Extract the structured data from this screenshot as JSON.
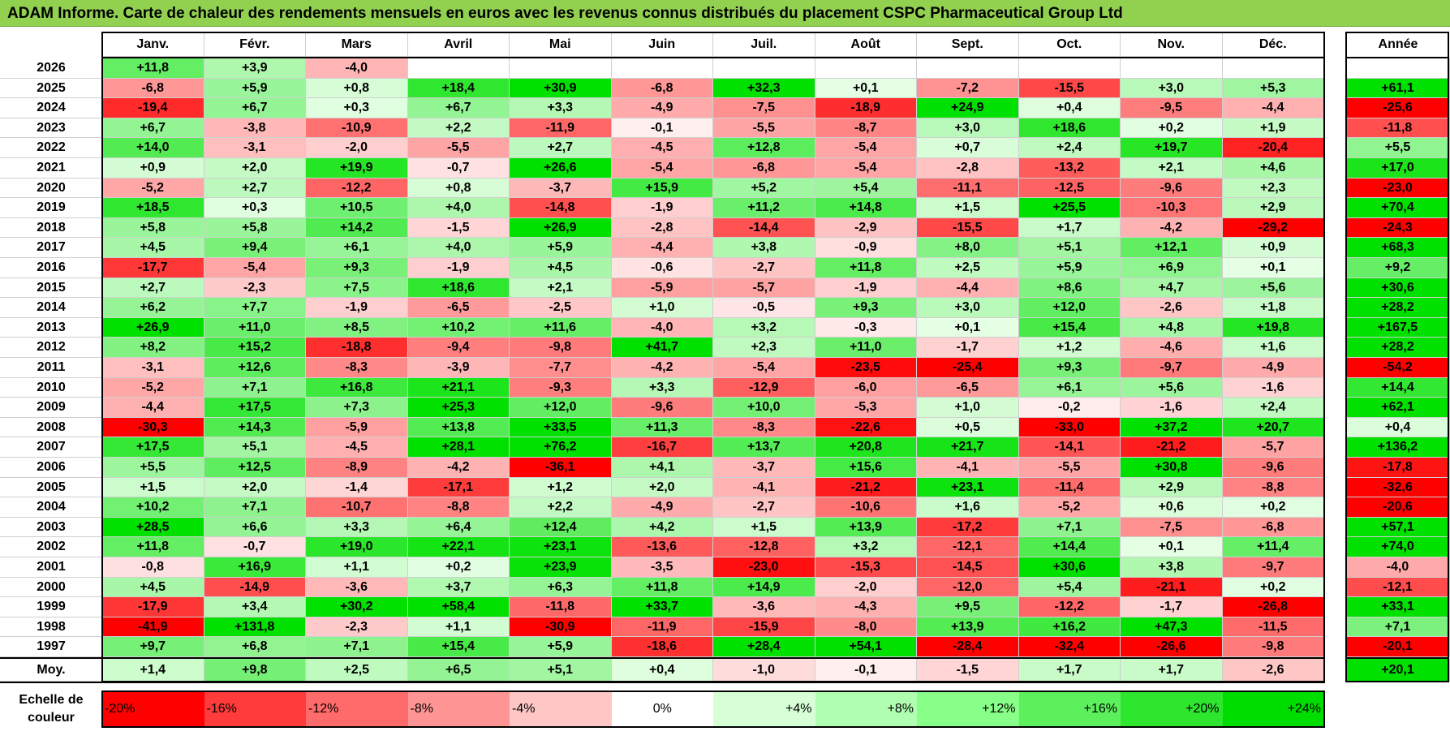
{
  "title": "ADAM Informe. Carte de chaleur des rendements mensuels en euros avec les revenus connus distribués du placement CSPC Pharmaceutical Group Ltd",
  "chart_data": {
    "type": "heatmap",
    "title": "ADAM Informe. Carte de chaleur des rendements mensuels en euros avec les revenus connus distribués du placement CSPC Pharmaceutical Group Ltd",
    "months": [
      "Janv.",
      "Févr.",
      "Mars",
      "Avril",
      "Mai",
      "Juin",
      "Juil.",
      "Août",
      "Sept.",
      "Oct.",
      "Nov.",
      "Déc."
    ],
    "year_header": "Année",
    "rows": [
      {
        "year": "2026",
        "values": [
          "+11,8",
          "+3,9",
          "-4,0",
          "",
          "",
          "",
          "",
          "",
          "",
          "",
          "",
          ""
        ],
        "annual": ""
      },
      {
        "year": "2025",
        "values": [
          "-6,8",
          "+5,9",
          "+0,8",
          "+18,4",
          "+30,9",
          "-6,8",
          "+32,3",
          "+0,1",
          "-7,2",
          "-15,5",
          "+3,0",
          "+5,3"
        ],
        "annual": "+61,1"
      },
      {
        "year": "2024",
        "values": [
          "-19,4",
          "+6,7",
          "+0,3",
          "+6,7",
          "+3,3",
          "-4,9",
          "-7,5",
          "-18,9",
          "+24,9",
          "+0,4",
          "-9,5",
          "-4,4"
        ],
        "annual": "-25,6"
      },
      {
        "year": "2023",
        "values": [
          "+6,7",
          "-3,8",
          "-10,9",
          "+2,2",
          "-11,9",
          "-0,1",
          "-5,5",
          "-8,7",
          "+3,0",
          "+18,6",
          "+0,2",
          "+1,9"
        ],
        "annual": "-11,8"
      },
      {
        "year": "2022",
        "values": [
          "+14,0",
          "-3,1",
          "-2,0",
          "-5,5",
          "+2,7",
          "-4,5",
          "+12,8",
          "-5,4",
          "+0,7",
          "+2,4",
          "+19,7",
          "-20,4"
        ],
        "annual": "+5,5"
      },
      {
        "year": "2021",
        "values": [
          "+0,9",
          "+2,0",
          "+19,9",
          "-0,7",
          "+26,6",
          "-5,4",
          "-6,8",
          "-5,4",
          "-2,8",
          "-13,2",
          "+2,1",
          "+4,6"
        ],
        "annual": "+17,0"
      },
      {
        "year": "2020",
        "values": [
          "-5,2",
          "+2,7",
          "-12,2",
          "+0,8",
          "-3,7",
          "+15,9",
          "+5,2",
          "+5,4",
          "-11,1",
          "-12,5",
          "-9,6",
          "+2,3"
        ],
        "annual": "-23,0"
      },
      {
        "year": "2019",
        "values": [
          "+18,5",
          "+0,3",
          "+10,5",
          "+4,0",
          "-14,8",
          "-1,9",
          "+11,2",
          "+14,8",
          "+1,5",
          "+25,5",
          "-10,3",
          "+2,9"
        ],
        "annual": "+70,4"
      },
      {
        "year": "2018",
        "values": [
          "+5,8",
          "+5,8",
          "+14,2",
          "-1,5",
          "+26,9",
          "-2,8",
          "-14,4",
          "-2,9",
          "-15,5",
          "+1,7",
          "-4,2",
          "-29,2"
        ],
        "annual": "-24,3"
      },
      {
        "year": "2017",
        "values": [
          "+4,5",
          "+9,4",
          "+6,1",
          "+4,0",
          "+5,9",
          "-4,4",
          "+3,8",
          "-0,9",
          "+8,0",
          "+5,1",
          "+12,1",
          "+0,9"
        ],
        "annual": "+68,3"
      },
      {
        "year": "2016",
        "values": [
          "-17,7",
          "-5,4",
          "+9,3",
          "-1,9",
          "+4,5",
          "-0,6",
          "-2,7",
          "+11,8",
          "+2,5",
          "+5,9",
          "+6,9",
          "+0,1"
        ],
        "annual": "+9,2"
      },
      {
        "year": "2015",
        "values": [
          "+2,7",
          "-2,3",
          "+7,5",
          "+18,6",
          "+2,1",
          "-5,9",
          "-5,7",
          "-1,9",
          "-4,4",
          "+8,6",
          "+4,7",
          "+5,6"
        ],
        "annual": "+30,6"
      },
      {
        "year": "2014",
        "values": [
          "+6,2",
          "+7,7",
          "-1,9",
          "-6,5",
          "-2,5",
          "+1,0",
          "-0,5",
          "+9,3",
          "+3,0",
          "+12,0",
          "-2,6",
          "+1,8"
        ],
        "annual": "+28,2"
      },
      {
        "year": "2013",
        "values": [
          "+26,9",
          "+11,0",
          "+8,5",
          "+10,2",
          "+11,6",
          "-4,0",
          "+3,2",
          "-0,3",
          "+0,1",
          "+15,4",
          "+4,8",
          "+19,8"
        ],
        "annual": "+167,5"
      },
      {
        "year": "2012",
        "values": [
          "+8,2",
          "+15,2",
          "-18,8",
          "-9,4",
          "-9,8",
          "+41,7",
          "+2,3",
          "+11,0",
          "-1,7",
          "+1,2",
          "-4,6",
          "+1,6"
        ],
        "annual": "+28,2"
      },
      {
        "year": "2011",
        "values": [
          "-3,1",
          "+12,6",
          "-8,3",
          "-3,9",
          "-7,7",
          "-4,2",
          "-5,4",
          "-23,5",
          "-25,4",
          "+9,3",
          "-9,7",
          "-4,9"
        ],
        "annual": "-54,2"
      },
      {
        "year": "2010",
        "values": [
          "-5,2",
          "+7,1",
          "+16,8",
          "+21,1",
          "-9,3",
          "+3,3",
          "-12,9",
          "-6,0",
          "-6,5",
          "+6,1",
          "+5,6",
          "-1,6"
        ],
        "annual": "+14,4"
      },
      {
        "year": "2009",
        "values": [
          "-4,4",
          "+17,5",
          "+7,3",
          "+25,3",
          "+12,0",
          "-9,6",
          "+10,0",
          "-5,3",
          "+1,0",
          "-0,2",
          "-1,6",
          "+2,4"
        ],
        "annual": "+62,1"
      },
      {
        "year": "2008",
        "values": [
          "-30,3",
          "+14,3",
          "-5,9",
          "+13,8",
          "+33,5",
          "+11,3",
          "-8,3",
          "-22,6",
          "+0,5",
          "-33,0",
          "+37,2",
          "+20,7"
        ],
        "annual": "+0,4"
      },
      {
        "year": "2007",
        "values": [
          "+17,5",
          "+5,1",
          "-4,5",
          "+28,1",
          "+76,2",
          "-16,7",
          "+13,7",
          "+20,8",
          "+21,7",
          "-14,1",
          "-21,2",
          "-5,7"
        ],
        "annual": "+136,2"
      },
      {
        "year": "2006",
        "values": [
          "+5,5",
          "+12,5",
          "-8,9",
          "-4,2",
          "-36,1",
          "+4,1",
          "-3,7",
          "+15,6",
          "-4,1",
          "-5,5",
          "+30,8",
          "-9,6"
        ],
        "annual": "-17,8"
      },
      {
        "year": "2005",
        "values": [
          "+1,5",
          "+2,0",
          "-1,4",
          "-17,1",
          "+1,2",
          "+2,0",
          "-4,1",
          "-21,2",
          "+23,1",
          "-11,4",
          "+2,9",
          "-8,8"
        ],
        "annual": "-32,6"
      },
      {
        "year": "2004",
        "values": [
          "+10,2",
          "+7,1",
          "-10,7",
          "-8,8",
          "+2,2",
          "-4,9",
          "-2,7",
          "-10,6",
          "+1,6",
          "-5,2",
          "+0,6",
          "+0,2"
        ],
        "annual": "-20,6"
      },
      {
        "year": "2003",
        "values": [
          "+28,5",
          "+6,6",
          "+3,3",
          "+6,4",
          "+12,4",
          "+4,2",
          "+1,5",
          "+13,9",
          "-17,2",
          "+7,1",
          "-7,5",
          "-6,8"
        ],
        "annual": "+57,1"
      },
      {
        "year": "2002",
        "values": [
          "+11,8",
          "-0,7",
          "+19,0",
          "+22,1",
          "+23,1",
          "-13,6",
          "-12,8",
          "+3,2",
          "-12,1",
          "+14,4",
          "+0,1",
          "+11,4"
        ],
        "annual": "+74,0"
      },
      {
        "year": "2001",
        "values": [
          "-0,8",
          "+16,9",
          "+1,1",
          "+0,2",
          "+23,9",
          "-3,5",
          "-23,0",
          "-15,3",
          "-14,5",
          "+30,6",
          "+3,8",
          "-9,7"
        ],
        "annual": "-4,0"
      },
      {
        "year": "2000",
        "values": [
          "+4,5",
          "-14,9",
          "-3,6",
          "+3,7",
          "+6,3",
          "+11,8",
          "+14,9",
          "-2,0",
          "-12,0",
          "+5,4",
          "-21,1",
          "+0,2"
        ],
        "annual": "-12,1"
      },
      {
        "year": "1999",
        "values": [
          "-17,9",
          "+3,4",
          "+30,2",
          "+58,4",
          "-11,8",
          "+33,7",
          "-3,6",
          "-4,3",
          "+9,5",
          "-12,2",
          "-1,7",
          "-26,8"
        ],
        "annual": "+33,1"
      },
      {
        "year": "1998",
        "values": [
          "-41,9",
          "+131,8",
          "-2,3",
          "+1,1",
          "-30,9",
          "-11,9",
          "-15,9",
          "-8,0",
          "+13,9",
          "+16,2",
          "+47,3",
          "-11,5"
        ],
        "annual": "+7,1"
      },
      {
        "year": "1997",
        "values": [
          "+9,7",
          "+6,8",
          "+7,1",
          "+15,4",
          "+5,9",
          "-18,6",
          "+28,4",
          "+54,1",
          "-28,4",
          "-32,4",
          "-26,6",
          "-9,8"
        ],
        "annual": "-20,1"
      }
    ],
    "average": {
      "label": "Moy.",
      "values": [
        "+1,4",
        "+9,8",
        "+2,5",
        "+6,5",
        "+5,1",
        "+0,4",
        "-1,0",
        "-0,1",
        "-1,5",
        "+1,7",
        "+1,7",
        "-2,6"
      ],
      "annual": "+20,1"
    },
    "legend": {
      "label": "Echelle de couleur",
      "stops": [
        "-20%",
        "-16%",
        "-12%",
        "-8%",
        "-4%",
        "0%",
        "+4%",
        "+8%",
        "+12%",
        "+16%",
        "+20%",
        "+24%"
      ]
    },
    "colors": {
      "title_bg": "#92D050",
      "max_red": "#FF0000",
      "max_green": "#00DD00",
      "neutral": "#FFFFFF"
    }
  }
}
